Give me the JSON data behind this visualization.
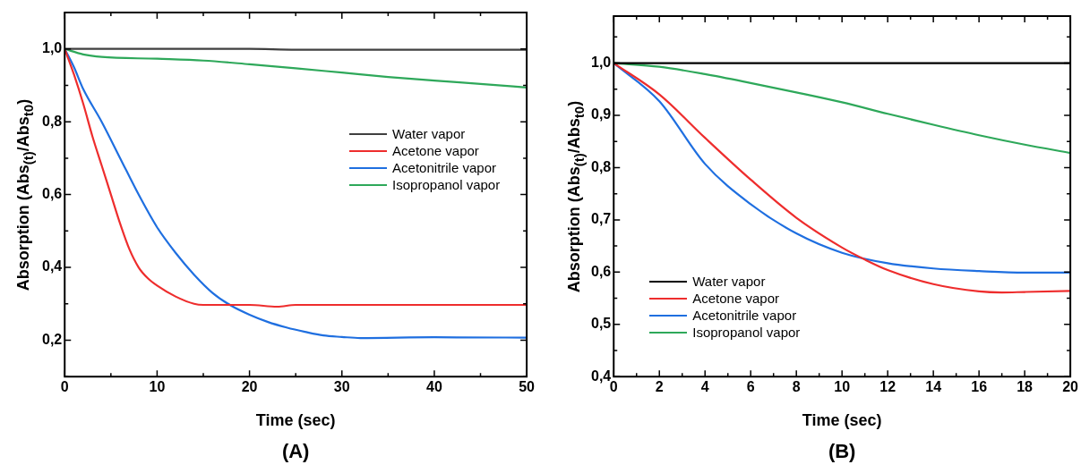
{
  "chart_data": [
    {
      "type": "line",
      "title": "(A)",
      "xlabel": "Time (sec)",
      "ylabel": "Absorption (Abs$_{(t)}$/Abs$_{t0}$)",
      "xlim": [
        0,
        50
      ],
      "ylim": [
        0.1,
        1.1
      ],
      "xticks": [
        0,
        {
          "value": 5,
          "label": null
        },
        10,
        {
          "value": 15,
          "label": null
        },
        20,
        {
          "value": 25,
          "label": null
        },
        30,
        {
          "value": 35,
          "label": null
        },
        40,
        {
          "value": 45,
          "label": null
        },
        50
      ],
      "yticks": [
        {
          "value": 0.1,
          "label": null
        },
        {
          "value": 0.2,
          "label": "0,2"
        },
        {
          "value": 0.3,
          "label": null
        },
        {
          "value": 0.4,
          "label": "0,4"
        },
        {
          "value": 0.5,
          "label": null
        },
        {
          "value": 0.6,
          "label": "0,6"
        },
        {
          "value": 0.7,
          "label": null
        },
        {
          "value": 0.8,
          "label": "0,8"
        },
        {
          "value": 0.9,
          "label": null
        },
        {
          "value": 1.0,
          "label": "1,0"
        },
        {
          "value": 1.1,
          "label": null
        }
      ],
      "legend": "right",
      "series": [
        {
          "name": "Water vapor",
          "color": "#404040",
          "x": [
            0,
            10,
            20,
            25,
            30,
            40,
            50
          ],
          "values": [
            1.0,
            1.0,
            1.0,
            0.998,
            0.998,
            0.998,
            0.998
          ]
        },
        {
          "name": "Acetone vapor",
          "color": "#ee2d2d",
          "x": [
            0,
            1,
            2,
            3,
            4,
            5,
            6,
            7,
            8,
            9,
            10,
            12,
            14,
            15,
            20,
            23,
            25,
            30,
            40,
            50
          ],
          "values": [
            1.0,
            0.93,
            0.85,
            0.76,
            0.68,
            0.6,
            0.52,
            0.45,
            0.4,
            0.37,
            0.35,
            0.32,
            0.3,
            0.297,
            0.297,
            0.292,
            0.297,
            0.297,
            0.297,
            0.297
          ]
        },
        {
          "name": "Acetonitrile vapor",
          "color": "#1f6fe0",
          "x": [
            0,
            1,
            2,
            4,
            6,
            8,
            10,
            12,
            14,
            16,
            18,
            20,
            22,
            24,
            26,
            28,
            30,
            32,
            40,
            50
          ],
          "values": [
            1.0,
            0.95,
            0.89,
            0.8,
            0.7,
            0.6,
            0.51,
            0.44,
            0.38,
            0.33,
            0.295,
            0.27,
            0.25,
            0.235,
            0.223,
            0.213,
            0.209,
            0.206,
            0.208,
            0.207
          ]
        },
        {
          "name": "Isopropanol vapor",
          "color": "#2ea85a",
          "x": [
            0,
            2,
            4,
            10,
            15,
            20,
            25,
            30,
            35,
            40,
            45,
            50
          ],
          "values": [
            1.0,
            0.985,
            0.978,
            0.973,
            0.968,
            0.958,
            0.947,
            0.935,
            0.923,
            0.913,
            0.904,
            0.894
          ]
        }
      ]
    },
    {
      "type": "line",
      "title": "(B)",
      "xlabel": "Time (sec)",
      "ylabel": "Absorption (Abs$_{(t)}$/Abs$_{t0}$)",
      "xlim": [
        0,
        20
      ],
      "ylim": [
        0.4,
        1.09
      ],
      "xticks": [
        0,
        {
          "value": 1,
          "label": null
        },
        2,
        {
          "value": 3,
          "label": null
        },
        4,
        {
          "value": 5,
          "label": null
        },
        6,
        {
          "value": 7,
          "label": null
        },
        8,
        {
          "value": 9,
          "label": null
        },
        10,
        {
          "value": 11,
          "label": null
        },
        12,
        {
          "value": 13,
          "label": null
        },
        14,
        {
          "value": 15,
          "label": null
        },
        16,
        {
          "value": 17,
          "label": null
        },
        18,
        {
          "value": 19,
          "label": null
        },
        20
      ],
      "yticks": [
        {
          "value": 0.4,
          "label": "0,4"
        },
        {
          "value": 0.45,
          "label": null
        },
        {
          "value": 0.5,
          "label": "0,5"
        },
        {
          "value": 0.55,
          "label": null
        },
        {
          "value": 0.6,
          "label": "0,6"
        },
        {
          "value": 0.65,
          "label": null
        },
        {
          "value": 0.7,
          "label": "0,7"
        },
        {
          "value": 0.75,
          "label": null
        },
        {
          "value": 0.8,
          "label": "0,8"
        },
        {
          "value": 0.85,
          "label": null
        },
        {
          "value": 0.9,
          "label": "0,9"
        },
        {
          "value": 0.95,
          "label": null
        },
        {
          "value": 1.0,
          "label": "1,0"
        },
        {
          "value": 1.05,
          "label": null
        }
      ],
      "legend": "bottom left",
      "series": [
        {
          "name": "Water vapor",
          "color": "#000000",
          "x": [
            0,
            20
          ],
          "values": [
            1.0,
            1.0
          ]
        },
        {
          "name": "Acetone vapor",
          "color": "#ee2d2d",
          "x": [
            0,
            2,
            4,
            6,
            8,
            10,
            11,
            12,
            14,
            16,
            17,
            18,
            20
          ],
          "values": [
            1.0,
            0.94,
            0.857,
            0.777,
            0.704,
            0.647,
            0.624,
            0.604,
            0.577,
            0.563,
            0.561,
            0.562,
            0.564
          ]
        },
        {
          "name": "Acetonitrile vapor",
          "color": "#1f6fe0",
          "x": [
            0,
            2,
            4,
            6,
            8,
            10,
            12,
            14,
            16,
            18,
            20
          ],
          "values": [
            1.0,
            0.927,
            0.807,
            0.73,
            0.674,
            0.637,
            0.617,
            0.607,
            0.602,
            0.599,
            0.599
          ]
        },
        {
          "name": "Isopropanol vapor",
          "color": "#2ea85a",
          "x": [
            0,
            2,
            4,
            6,
            8,
            10,
            12,
            14,
            16,
            18,
            20
          ],
          "values": [
            1.0,
            0.993,
            0.979,
            0.962,
            0.944,
            0.925,
            0.903,
            0.882,
            0.862,
            0.844,
            0.828
          ]
        }
      ]
    }
  ]
}
